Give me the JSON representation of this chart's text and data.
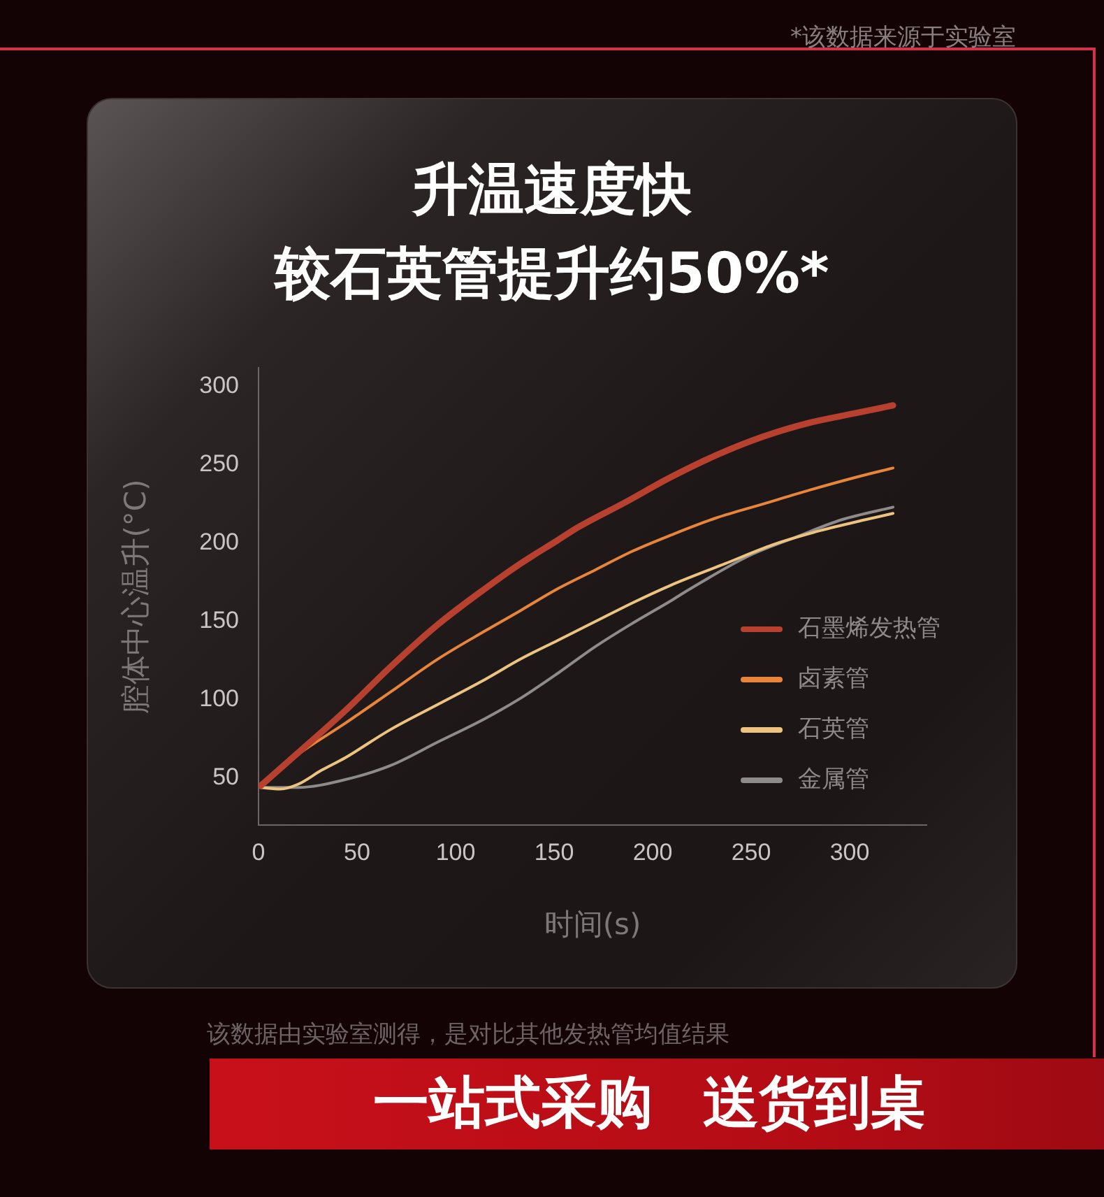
{
  "chart_data": {
    "type": "line",
    "title": "升温速度快",
    "subtitle": "较石英管提升约50%*",
    "xlabel": "时间(s)",
    "ylabel": "腔体中心温升(°C)",
    "annotations": [
      "*该数据来源于实验室",
      "该数据由实验室测得，是对比其他发热管均值结果",
      "一站式采购 送货到桌"
    ],
    "series": [
      {
        "name": "石墨烯发热管",
        "color": "#b8402f",
        "x": [
          1,
          20,
          44,
          67,
          91,
          115,
          133,
          152,
          162,
          186,
          209,
          232,
          256,
          280,
          303,
          322
        ],
        "values": [
          45,
          66,
          93,
          121,
          148,
          171,
          187,
          202,
          210,
          226,
          242,
          256,
          268,
          277,
          283,
          288
        ]
      },
      {
        "name": "卤素管",
        "color": "#e8853a",
        "x": [
          1,
          20,
          44,
          67,
          91,
          115,
          133,
          152,
          171,
          190,
          209,
          232,
          256,
          280,
          303,
          322
        ],
        "values": [
          45,
          65,
          85,
          105,
          126,
          144,
          157,
          171,
          183,
          195,
          205,
          216,
          225,
          234,
          242,
          248
        ]
      },
      {
        "name": "石英管",
        "color": "#ecc47f",
        "x": [
          1,
          11,
          20,
          32,
          44,
          67,
          91,
          115,
          133,
          152,
          171,
          190,
          209,
          237,
          261,
          285,
          308,
          322
        ],
        "values": [
          44,
          43,
          46,
          55,
          63,
          81,
          97,
          113,
          126,
          138,
          150,
          162,
          173,
          187,
          199,
          208,
          215,
          219
        ]
      },
      {
        "name": "金属管",
        "color": "#8e8c8b",
        "x": [
          1,
          20,
          44,
          67,
          91,
          115,
          133,
          152,
          171,
          190,
          209,
          218,
          249,
          273,
          296,
          322
        ],
        "values": [
          44,
          44,
          49,
          58,
          73,
          88,
          101,
          117,
          134,
          149,
          163,
          170,
          192,
          204,
          215,
          223
        ]
      }
    ],
    "xlim": [
      0,
      339
    ],
    "xticks": [
      0,
      50,
      100,
      150,
      200,
      250,
      300
    ],
    "ylim": [
      20,
      312
    ],
    "yticks": [
      50,
      100,
      150,
      200,
      250,
      300
    ],
    "legend": "bottom right",
    "marker": "none",
    "line_style": "solid"
  }
}
